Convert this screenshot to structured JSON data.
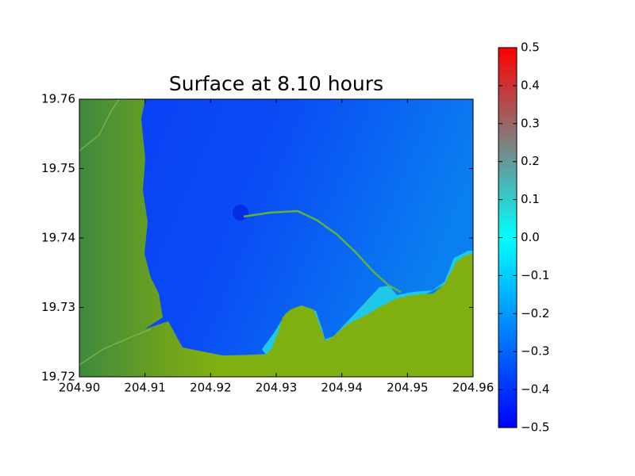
{
  "chart_data": {
    "type": "map",
    "title": "Surface at 8.10 hours",
    "xlim": [
      204.9,
      204.96
    ],
    "ylim": [
      19.72,
      19.76
    ],
    "xticks": [
      {
        "value": 204.9,
        "label": "204.90"
      },
      204.91,
      204.92,
      204.93,
      204.94,
      204.95,
      204.96
    ],
    "yticks": [
      19.72,
      19.73,
      19.74,
      19.75,
      19.76
    ],
    "colorbar": {
      "clim": [
        -0.5,
        0.5
      ],
      "colormap": [
        "#0000ff",
        "#00ffff",
        "#ff0000"
      ],
      "ticks": [
        {
          "value": -0.5,
          "label": "−0.5"
        },
        {
          "value": -0.4,
          "label": "−0.4"
        },
        {
          "value": -0.3,
          "label": "−0.3"
        },
        {
          "value": -0.2,
          "label": "−0.2"
        },
        {
          "value": -0.1,
          "label": "−0.1"
        },
        {
          "value": 0.0,
          "label": "0.0"
        },
        0.1,
        0.2,
        0.3,
        0.4,
        0.5
      ]
    }
  }
}
